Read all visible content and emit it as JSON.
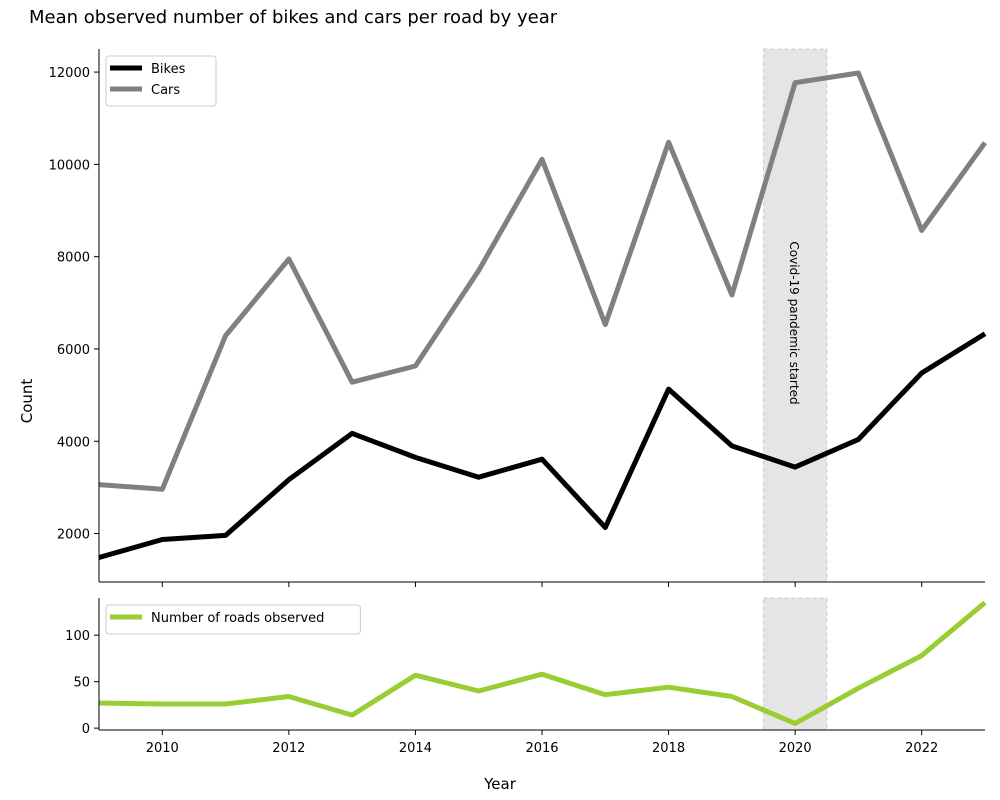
{
  "chart_data": {
    "type": "line",
    "title": "Mean observed number of bikes and cars per road by year",
    "xlabel": "Year",
    "x": [
      2009,
      2010,
      2011,
      2012,
      2013,
      2014,
      2015,
      2016,
      2017,
      2018,
      2019,
      2020,
      2021,
      2022,
      2023
    ],
    "xlim": [
      2009,
      2023
    ],
    "xticks": [
      2010,
      2012,
      2014,
      2016,
      2018,
      2020,
      2022
    ],
    "top_panel": {
      "ylabel": "Count",
      "ylim": [
        950,
        12500
      ],
      "yticks": [
        2000,
        4000,
        6000,
        8000,
        10000,
        12000
      ],
      "legend_position": "top-left",
      "series": [
        {
          "name": "Bikes",
          "color": "#000000",
          "values": [
            1480,
            1870,
            1960,
            3170,
            4170,
            3650,
            3220,
            3610,
            2130,
            5130,
            3900,
            3440,
            4040,
            5480,
            6330
          ]
        },
        {
          "name": "Cars",
          "color": "#808080",
          "values": [
            3060,
            2960,
            6290,
            7950,
            5280,
            5630,
            7700,
            10110,
            6530,
            10480,
            7170,
            11770,
            11980,
            8570,
            10470
          ]
        }
      ]
    },
    "bottom_panel": {
      "ylim": [
        -2,
        140
      ],
      "yticks": [
        0,
        50,
        100
      ],
      "legend_position": "top-left",
      "series": [
        {
          "name": "Number of roads observed",
          "color": "#9acd32",
          "values": [
            27,
            26,
            26,
            34,
            14,
            57,
            40,
            58,
            36,
            44,
            34,
            5,
            43,
            78,
            135
          ]
        }
      ]
    },
    "shaded_region": {
      "x_range": [
        2019.5,
        2020.5
      ],
      "color": "#e5e5e5",
      "label": "Covid-19 pandemic started"
    }
  }
}
